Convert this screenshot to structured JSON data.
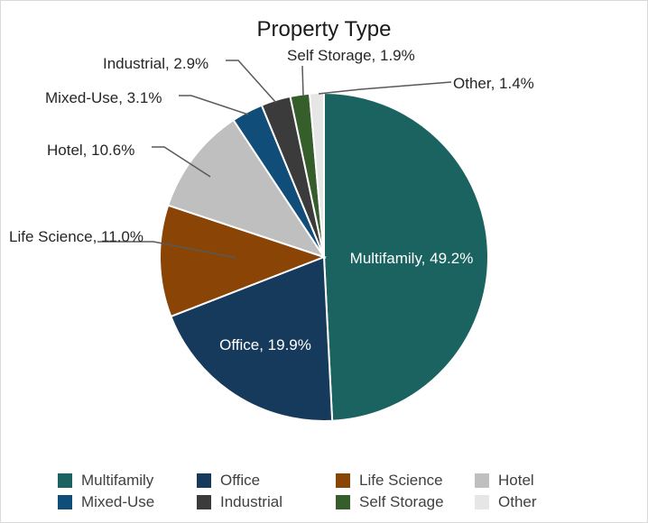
{
  "chart_data": {
    "type": "pie",
    "title": "Property Type",
    "categories": [
      "Multifamily",
      "Office",
      "Life Science",
      "Hotel",
      "Mixed-Use",
      "Industrial",
      "Self Storage",
      "Other"
    ],
    "values": [
      49.2,
      19.9,
      11.0,
      10.6,
      3.1,
      2.9,
      1.9,
      1.4
    ],
    "colors": [
      "#1b6361",
      "#163a5b",
      "#8a4405",
      "#bfbfbf",
      "#104d78",
      "#3b3b3b",
      "#355e2b",
      "#e6e6e6"
    ],
    "data_labels": [
      "Multifamily, 49.2%",
      "Office, 19.9%",
      "Life Science, 11.0%",
      "Hotel, 10.6%",
      "Mixed-Use, 3.1%",
      "Industrial, 2.9%",
      "Self Storage, 1.9%",
      "Other, 1.4%"
    ],
    "legend_position": "bottom"
  }
}
